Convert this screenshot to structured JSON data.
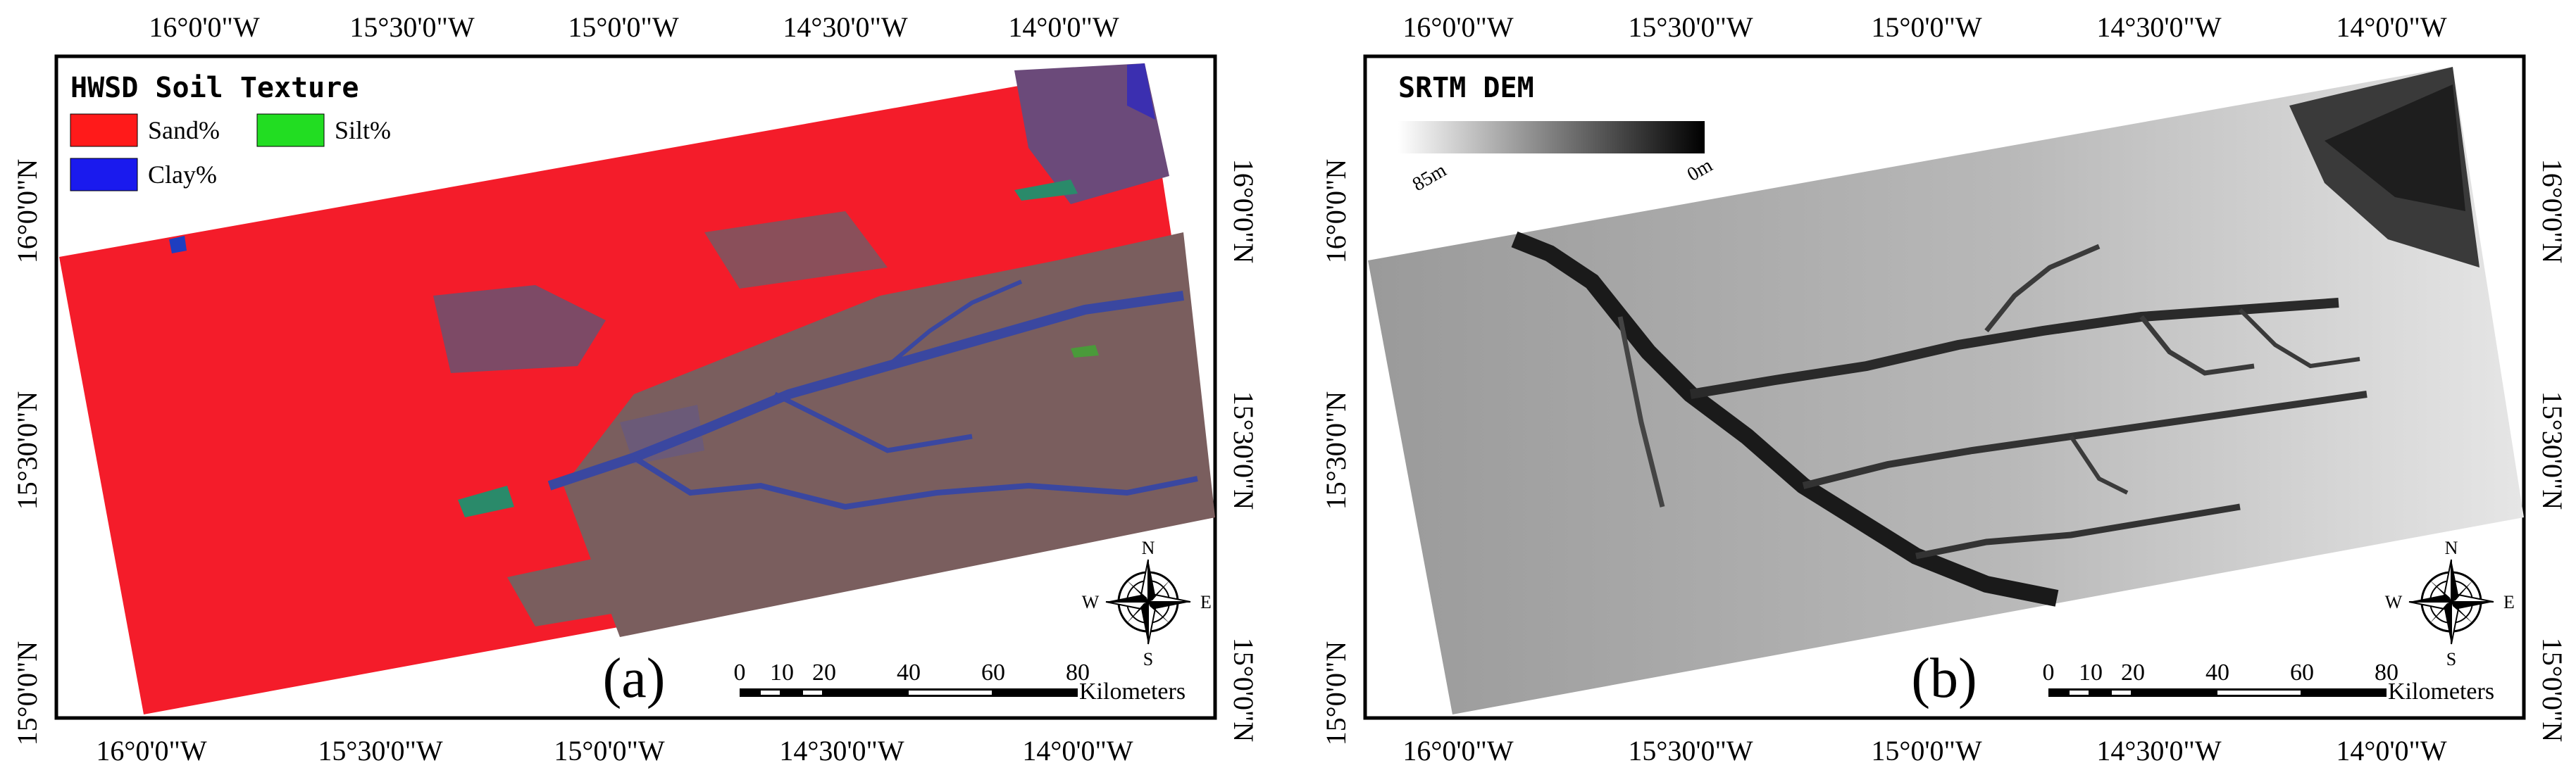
{
  "panels": [
    {
      "id": "a",
      "label": "(a)",
      "lon_labels": [
        "16°0'0\"W",
        "15°30'0\"W",
        "15°0'0\"W",
        "14°30'0\"W",
        "14°0'0\"W"
      ],
      "lat_labels": [
        "16°0'0\"N",
        "15°30'0\"N",
        "15°0'0\"N"
      ],
      "legend": {
        "title": "HWSD Soil Texture",
        "items": [
          {
            "label": "Sand%",
            "color": "#ff1a1a"
          },
          {
            "label": "Silt%",
            "color": "#22dd22"
          },
          {
            "label": "Clay%",
            "color": "#1a1aee"
          }
        ]
      },
      "scale_bar": {
        "ticks": [
          "0",
          "10",
          "20",
          "40",
          "60",
          "80"
        ],
        "unit": "Kilometers"
      },
      "compass": {
        "n": "N",
        "s": "S",
        "e": "E",
        "w": "W"
      }
    },
    {
      "id": "b",
      "label": "(b)",
      "lon_labels": [
        "16°0'0\"W",
        "15°30'0\"W",
        "15°0'0\"W",
        "14°30'0\"W",
        "14°0'0\"W"
      ],
      "lat_labels": [
        "16°0'0\"N",
        "15°30'0\"N",
        "15°0'0\"N"
      ],
      "legend": {
        "title": "SRTM DEM",
        "min_label": "85m",
        "max_label": "0m"
      },
      "scale_bar": {
        "ticks": [
          "0",
          "10",
          "20",
          "40",
          "60",
          "80"
        ],
        "unit": "Kilometers"
      },
      "compass": {
        "n": "N",
        "s": "S",
        "e": "E",
        "w": "W"
      }
    }
  ]
}
